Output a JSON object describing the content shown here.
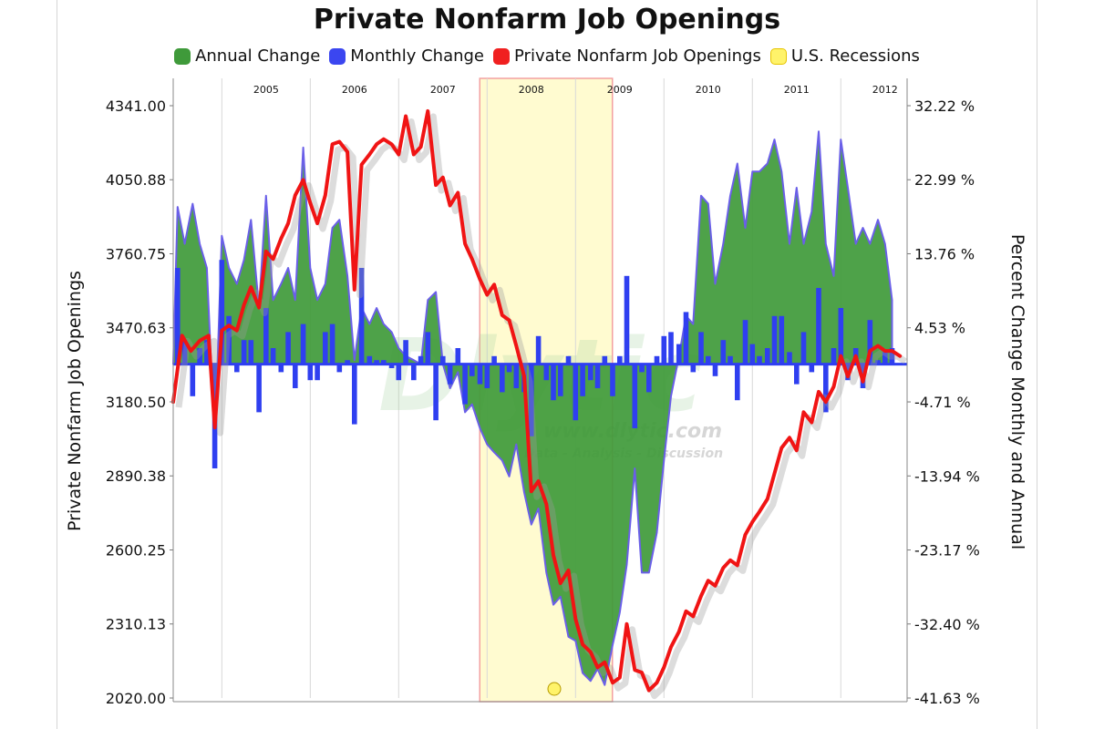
{
  "chart_data": {
    "type": "line",
    "title": "Private Nonfarm Job Openings",
    "ylabel_left": "Private Nonfarm Job Openings",
    "ylabel_right": "Percent Change Monthly and Annual",
    "left_ticks": [
      "4341.00",
      "4050.88",
      "3760.75",
      "3470.63",
      "3180.50",
      "2890.38",
      "2600.25",
      "2310.13",
      "2020.00"
    ],
    "right_ticks": [
      "32.22 %",
      "22.99 %",
      "13.76 %",
      "4.53 %",
      "-4.71 %",
      "-13.94 %",
      "-23.17 %",
      "-32.40 %",
      "-41.63 %"
    ],
    "ylim_left": [
      2020,
      4341
    ],
    "ylim_right": [
      -41.63,
      32.22
    ],
    "x_start": 2004.45,
    "x_end": 2012.75,
    "year_labels": [
      "2005",
      "2006",
      "2007",
      "2008",
      "2009",
      "2010",
      "2011",
      "2012"
    ],
    "recession": {
      "from": 2007.917,
      "to": 2009.417
    },
    "legend": [
      {
        "label": "Annual Change",
        "color": "#3f9a3a"
      },
      {
        "label": "Monthly Change",
        "color": "#3b46f0"
      },
      {
        "label": "Private Nonfarm Job Openings",
        "color": "#f02020"
      },
      {
        "label": "U.S. Recessions",
        "color": "#fff36a"
      }
    ],
    "colors": {
      "annual_fill": "#3f9a3a",
      "annual_stroke": "#6a5fe8",
      "monthly": "#2f3ff0",
      "openings": "#f01414",
      "recession_fill": "#fffbd0",
      "recession_edge": "#f3a0a0",
      "grid": "#d8d8d8"
    },
    "openings_points": [
      [
        2004.45,
        3180
      ],
      [
        2004.55,
        3440
      ],
      [
        2004.65,
        3380
      ],
      [
        2004.75,
        3420
      ],
      [
        2004.85,
        3440
      ],
      [
        2004.92,
        3080
      ],
      [
        2005.0,
        3460
      ],
      [
        2005.08,
        3480
      ],
      [
        2005.17,
        3460
      ],
      [
        2005.25,
        3560
      ],
      [
        2005.33,
        3630
      ],
      [
        2005.42,
        3550
      ],
      [
        2005.5,
        3770
      ],
      [
        2005.58,
        3740
      ],
      [
        2005.67,
        3820
      ],
      [
        2005.75,
        3880
      ],
      [
        2005.83,
        3990
      ],
      [
        2005.92,
        4050
      ],
      [
        2006.0,
        3960
      ],
      [
        2006.08,
        3880
      ],
      [
        2006.17,
        3990
      ],
      [
        2006.25,
        4190
      ],
      [
        2006.33,
        4200
      ],
      [
        2006.42,
        4160
      ],
      [
        2006.5,
        3620
      ],
      [
        2006.58,
        4110
      ],
      [
        2006.67,
        4150
      ],
      [
        2006.75,
        4190
      ],
      [
        2006.83,
        4210
      ],
      [
        2006.92,
        4190
      ],
      [
        2007.0,
        4150
      ],
      [
        2007.08,
        4300
      ],
      [
        2007.17,
        4150
      ],
      [
        2007.25,
        4180
      ],
      [
        2007.33,
        4320
      ],
      [
        2007.42,
        4030
      ],
      [
        2007.5,
        4060
      ],
      [
        2007.58,
        3950
      ],
      [
        2007.67,
        4000
      ],
      [
        2007.75,
        3800
      ],
      [
        2007.83,
        3740
      ],
      [
        2007.92,
        3660
      ],
      [
        2008.0,
        3600
      ],
      [
        2008.08,
        3640
      ],
      [
        2008.17,
        3520
      ],
      [
        2008.25,
        3500
      ],
      [
        2008.33,
        3400
      ],
      [
        2008.42,
        3280
      ],
      [
        2008.5,
        2830
      ],
      [
        2008.58,
        2870
      ],
      [
        2008.67,
        2780
      ],
      [
        2008.75,
        2580
      ],
      [
        2008.83,
        2470
      ],
      [
        2008.92,
        2520
      ],
      [
        2009.0,
        2330
      ],
      [
        2009.08,
        2230
      ],
      [
        2009.17,
        2200
      ],
      [
        2009.25,
        2140
      ],
      [
        2009.33,
        2160
      ],
      [
        2009.42,
        2080
      ],
      [
        2009.5,
        2100
      ],
      [
        2009.58,
        2310
      ],
      [
        2009.67,
        2130
      ],
      [
        2009.75,
        2120
      ],
      [
        2009.83,
        2050
      ],
      [
        2009.92,
        2080
      ],
      [
        2010.0,
        2140
      ],
      [
        2010.08,
        2220
      ],
      [
        2010.17,
        2280
      ],
      [
        2010.25,
        2360
      ],
      [
        2010.33,
        2340
      ],
      [
        2010.42,
        2420
      ],
      [
        2010.5,
        2480
      ],
      [
        2010.58,
        2460
      ],
      [
        2010.67,
        2530
      ],
      [
        2010.75,
        2560
      ],
      [
        2010.83,
        2540
      ],
      [
        2010.92,
        2660
      ],
      [
        2011.0,
        2710
      ],
      [
        2011.08,
        2750
      ],
      [
        2011.17,
        2800
      ],
      [
        2011.25,
        2900
      ],
      [
        2011.33,
        3000
      ],
      [
        2011.42,
        3040
      ],
      [
        2011.5,
        2990
      ],
      [
        2011.58,
        3140
      ],
      [
        2011.67,
        3100
      ],
      [
        2011.75,
        3220
      ],
      [
        2011.83,
        3180
      ],
      [
        2011.92,
        3240
      ],
      [
        2012.0,
        3360
      ],
      [
        2012.08,
        3280
      ],
      [
        2012.17,
        3360
      ],
      [
        2012.25,
        3260
      ],
      [
        2012.33,
        3380
      ],
      [
        2012.42,
        3400
      ],
      [
        2012.5,
        3380
      ],
      [
        2012.58,
        3380
      ],
      [
        2012.67,
        3360
      ]
    ],
    "annual_change_points": [
      [
        2004.45,
        0.0
      ],
      [
        2004.5,
        19.6
      ],
      [
        2004.58,
        15.0
      ],
      [
        2004.67,
        20.0
      ],
      [
        2004.75,
        15.0
      ],
      [
        2004.83,
        12.0
      ],
      [
        2004.92,
        -10.0
      ],
      [
        2005.0,
        16.0
      ],
      [
        2005.08,
        12.0
      ],
      [
        2005.17,
        10.0
      ],
      [
        2005.25,
        13.0
      ],
      [
        2005.33,
        18.0
      ],
      [
        2005.42,
        7.0
      ],
      [
        2005.5,
        21.0
      ],
      [
        2005.58,
        8.0
      ],
      [
        2005.67,
        10.0
      ],
      [
        2005.75,
        12.0
      ],
      [
        2005.83,
        8.0
      ],
      [
        2005.92,
        27.0
      ],
      [
        2006.0,
        12.0
      ],
      [
        2006.08,
        8.0
      ],
      [
        2006.17,
        10.0
      ],
      [
        2006.25,
        17.0
      ],
      [
        2006.33,
        18.0
      ],
      [
        2006.42,
        11.0
      ],
      [
        2006.5,
        0.5
      ],
      [
        2006.58,
        7.0
      ],
      [
        2006.67,
        5.0
      ],
      [
        2006.75,
        7.0
      ],
      [
        2006.83,
        5.0
      ],
      [
        2006.92,
        4.0
      ],
      [
        2007.0,
        2.0
      ],
      [
        2007.08,
        1.0
      ],
      [
        2007.17,
        0.5
      ],
      [
        2007.25,
        0.0
      ],
      [
        2007.33,
        8.0
      ],
      [
        2007.42,
        9.0
      ],
      [
        2007.5,
        0.0
      ],
      [
        2007.58,
        -3.0
      ],
      [
        2007.67,
        -1.0
      ],
      [
        2007.75,
        -6.0
      ],
      [
        2007.83,
        -5.0
      ],
      [
        2007.92,
        -8.0
      ],
      [
        2008.0,
        -10.0
      ],
      [
        2008.08,
        -11.0
      ],
      [
        2008.17,
        -12.0
      ],
      [
        2008.25,
        -14.0
      ],
      [
        2008.33,
        -10.0
      ],
      [
        2008.42,
        -16.0
      ],
      [
        2008.5,
        -20.0
      ],
      [
        2008.58,
        -18.0
      ],
      [
        2008.67,
        -26.0
      ],
      [
        2008.75,
        -30.0
      ],
      [
        2008.83,
        -29.0
      ],
      [
        2008.92,
        -34.0
      ],
      [
        2009.0,
        -34.5
      ],
      [
        2009.08,
        -38.5
      ],
      [
        2009.17,
        -39.5
      ],
      [
        2009.25,
        -38.0
      ],
      [
        2009.33,
        -40.0
      ],
      [
        2009.42,
        -35.0
      ],
      [
        2009.5,
        -31.0
      ],
      [
        2009.58,
        -25.0
      ],
      [
        2009.67,
        -13.0
      ],
      [
        2009.75,
        -26.0
      ],
      [
        2009.83,
        -26.0
      ],
      [
        2009.92,
        -21.0
      ],
      [
        2010.0,
        -12.0
      ],
      [
        2010.08,
        -4.0
      ],
      [
        2010.17,
        1.0
      ],
      [
        2010.25,
        6.0
      ],
      [
        2010.33,
        5.0
      ],
      [
        2010.42,
        21.0
      ],
      [
        2010.5,
        20.0
      ],
      [
        2010.58,
        10.0
      ],
      [
        2010.67,
        15.0
      ],
      [
        2010.75,
        21.0
      ],
      [
        2010.83,
        25.0
      ],
      [
        2010.92,
        17.0
      ],
      [
        2011.0,
        24.0
      ],
      [
        2011.08,
        24.0
      ],
      [
        2011.17,
        25.0
      ],
      [
        2011.25,
        28.0
      ],
      [
        2011.33,
        24.0
      ],
      [
        2011.42,
        15.0
      ],
      [
        2011.5,
        22.0
      ],
      [
        2011.58,
        15.0
      ],
      [
        2011.67,
        19.0
      ],
      [
        2011.75,
        29.0
      ],
      [
        2011.83,
        15.0
      ],
      [
        2011.92,
        11.0
      ],
      [
        2012.0,
        28.0
      ],
      [
        2012.08,
        22.0
      ],
      [
        2012.17,
        15.0
      ],
      [
        2012.25,
        17.0
      ],
      [
        2012.33,
        15.0
      ],
      [
        2012.42,
        18.0
      ],
      [
        2012.5,
        15.0
      ],
      [
        2012.58,
        8.0
      ]
    ],
    "monthly_change_points": [
      [
        2004.5,
        12.0
      ],
      [
        2004.58,
        3.0
      ],
      [
        2004.67,
        -4.0
      ],
      [
        2004.75,
        2.0
      ],
      [
        2004.83,
        3.0
      ],
      [
        2004.92,
        -13.0
      ],
      [
        2005.0,
        13.0
      ],
      [
        2005.08,
        6.0
      ],
      [
        2005.17,
        -1.0
      ],
      [
        2005.25,
        3.0
      ],
      [
        2005.33,
        3.0
      ],
      [
        2005.42,
        -6.0
      ],
      [
        2005.5,
        7.0
      ],
      [
        2005.58,
        2.0
      ],
      [
        2005.67,
        -1.0
      ],
      [
        2005.75,
        4.0
      ],
      [
        2005.83,
        -3.0
      ],
      [
        2005.92,
        5.0
      ],
      [
        2006.0,
        -2.0
      ],
      [
        2006.08,
        -2.0
      ],
      [
        2006.17,
        4.0
      ],
      [
        2006.25,
        5.0
      ],
      [
        2006.33,
        -1.0
      ],
      [
        2006.42,
        0.5
      ],
      [
        2006.5,
        -7.5
      ],
      [
        2006.58,
        12.0
      ],
      [
        2006.67,
        1.0
      ],
      [
        2006.75,
        0.5
      ],
      [
        2006.83,
        0.5
      ],
      [
        2006.92,
        -0.5
      ],
      [
        2007.0,
        -2.0
      ],
      [
        2007.08,
        3.0
      ],
      [
        2007.17,
        -2.0
      ],
      [
        2007.25,
        1.0
      ],
      [
        2007.33,
        4.0
      ],
      [
        2007.42,
        -7.0
      ],
      [
        2007.5,
        1.0
      ],
      [
        2007.58,
        -2.5
      ],
      [
        2007.67,
        2.0
      ],
      [
        2007.75,
        -5.0
      ],
      [
        2007.83,
        -1.5
      ],
      [
        2007.92,
        -2.5
      ],
      [
        2008.0,
        -3.0
      ],
      [
        2008.08,
        1.0
      ],
      [
        2008.17,
        -3.5
      ],
      [
        2008.25,
        -1.0
      ],
      [
        2008.33,
        -3.0
      ],
      [
        2008.42,
        -3.5
      ],
      [
        2008.5,
        -9.0
      ],
      [
        2008.58,
        3.5
      ],
      [
        2008.67,
        -2.0
      ],
      [
        2008.75,
        -4.5
      ],
      [
        2008.83,
        -4.0
      ],
      [
        2008.92,
        1.0
      ],
      [
        2009.0,
        -7.0
      ],
      [
        2009.08,
        -4.0
      ],
      [
        2009.17,
        -2.0
      ],
      [
        2009.25,
        -3.0
      ],
      [
        2009.33,
        1.0
      ],
      [
        2009.42,
        -4.0
      ],
      [
        2009.5,
        1.0
      ],
      [
        2009.58,
        11.0
      ],
      [
        2009.67,
        -8.0
      ],
      [
        2009.75,
        -1.0
      ],
      [
        2009.83,
        -3.5
      ],
      [
        2009.92,
        1.0
      ],
      [
        2010.0,
        3.5
      ],
      [
        2010.08,
        4.0
      ],
      [
        2010.17,
        2.5
      ],
      [
        2010.25,
        6.5
      ],
      [
        2010.33,
        -1.0
      ],
      [
        2010.42,
        4.0
      ],
      [
        2010.5,
        1.0
      ],
      [
        2010.58,
        -1.5
      ],
      [
        2010.67,
        3.0
      ],
      [
        2010.75,
        1.0
      ],
      [
        2010.83,
        -4.5
      ],
      [
        2010.92,
        5.5
      ],
      [
        2011.0,
        2.5
      ],
      [
        2011.08,
        1.0
      ],
      [
        2011.17,
        2.0
      ],
      [
        2011.25,
        6.0
      ],
      [
        2011.33,
        6.0
      ],
      [
        2011.42,
        1.5
      ],
      [
        2011.5,
        -2.5
      ],
      [
        2011.58,
        4.0
      ],
      [
        2011.67,
        -1.0
      ],
      [
        2011.75,
        9.5
      ],
      [
        2011.83,
        -6.0
      ],
      [
        2011.92,
        2.0
      ],
      [
        2012.0,
        7.0
      ],
      [
        2012.08,
        -2.0
      ],
      [
        2012.17,
        2.0
      ],
      [
        2012.25,
        -3.0
      ],
      [
        2012.33,
        5.5
      ],
      [
        2012.42,
        0.5
      ],
      [
        2012.5,
        1.5
      ],
      [
        2012.58,
        2.0
      ]
    ],
    "watermark": "Dlytic",
    "watermark_url": "www.dlytic.com",
    "watermark_tagline": "Data - Analysis - Discussion"
  }
}
